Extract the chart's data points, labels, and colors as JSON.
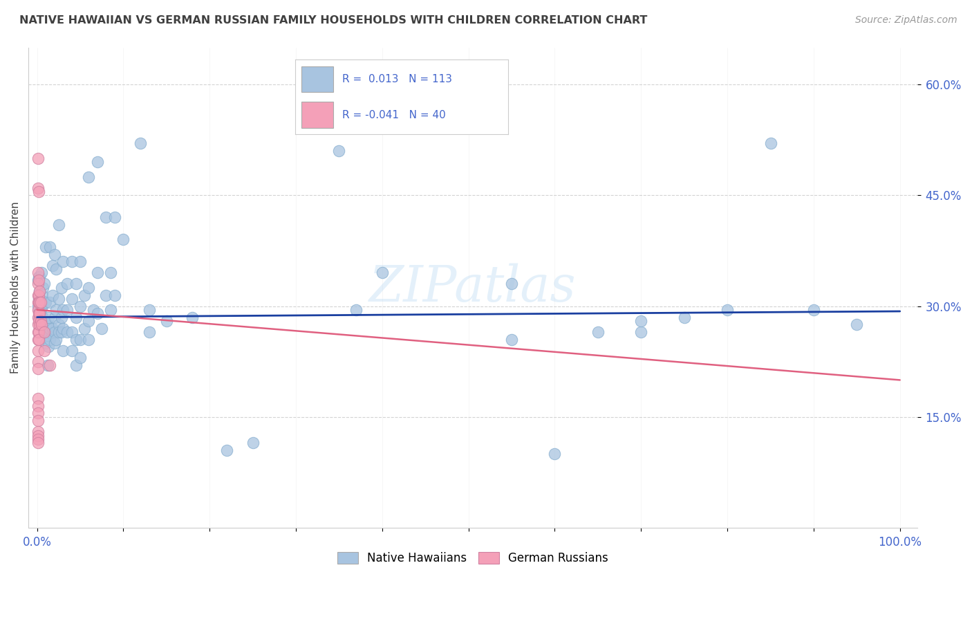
{
  "title": "NATIVE HAWAIIAN VS GERMAN RUSSIAN FAMILY HOUSEHOLDS WITH CHILDREN CORRELATION CHART",
  "source": "Source: ZipAtlas.com",
  "ylabel": "Family Households with Children",
  "R1": 0.013,
  "N1": 113,
  "R2": -0.041,
  "N2": 40,
  "color_blue": "#a8c4e0",
  "color_pink": "#f4a0b8",
  "trendline_blue": "#1a3fa0",
  "trendline_pink": "#e06080",
  "background": "#ffffff",
  "grid_color": "#c8c8c8",
  "title_color": "#404040",
  "axis_color": "#4466cc",
  "watermark": "ZIPatlas",
  "legend_label1": "Native Hawaiians",
  "legend_label2": "German Russians",
  "blue_intercept": 0.285,
  "blue_slope": 0.008,
  "pink_intercept": 0.295,
  "pink_slope": -0.095,
  "blue_points": [
    [
      0.001,
      0.335
    ],
    [
      0.001,
      0.3
    ],
    [
      0.002,
      0.34
    ],
    [
      0.002,
      0.31
    ],
    [
      0.002,
      0.285
    ],
    [
      0.002,
      0.295
    ],
    [
      0.003,
      0.34
    ],
    [
      0.003,
      0.31
    ],
    [
      0.003,
      0.32
    ],
    [
      0.004,
      0.3
    ],
    [
      0.004,
      0.295
    ],
    [
      0.005,
      0.345
    ],
    [
      0.005,
      0.3
    ],
    [
      0.005,
      0.285
    ],
    [
      0.006,
      0.315
    ],
    [
      0.006,
      0.3
    ],
    [
      0.006,
      0.275
    ],
    [
      0.007,
      0.325
    ],
    [
      0.007,
      0.285
    ],
    [
      0.007,
      0.27
    ],
    [
      0.008,
      0.33
    ],
    [
      0.008,
      0.27
    ],
    [
      0.008,
      0.265
    ],
    [
      0.009,
      0.305
    ],
    [
      0.009,
      0.28
    ],
    [
      0.01,
      0.38
    ],
    [
      0.01,
      0.305
    ],
    [
      0.01,
      0.275
    ],
    [
      0.01,
      0.25
    ],
    [
      0.012,
      0.275
    ],
    [
      0.012,
      0.26
    ],
    [
      0.012,
      0.22
    ],
    [
      0.013,
      0.285
    ],
    [
      0.013,
      0.265
    ],
    [
      0.013,
      0.245
    ],
    [
      0.015,
      0.38
    ],
    [
      0.015,
      0.305
    ],
    [
      0.015,
      0.27
    ],
    [
      0.015,
      0.255
    ],
    [
      0.018,
      0.355
    ],
    [
      0.018,
      0.315
    ],
    [
      0.018,
      0.27
    ],
    [
      0.02,
      0.37
    ],
    [
      0.02,
      0.285
    ],
    [
      0.02,
      0.265
    ],
    [
      0.02,
      0.25
    ],
    [
      0.022,
      0.35
    ],
    [
      0.022,
      0.295
    ],
    [
      0.022,
      0.255
    ],
    [
      0.025,
      0.41
    ],
    [
      0.025,
      0.31
    ],
    [
      0.025,
      0.275
    ],
    [
      0.025,
      0.265
    ],
    [
      0.028,
      0.325
    ],
    [
      0.028,
      0.285
    ],
    [
      0.028,
      0.265
    ],
    [
      0.03,
      0.36
    ],
    [
      0.03,
      0.295
    ],
    [
      0.03,
      0.27
    ],
    [
      0.03,
      0.24
    ],
    [
      0.035,
      0.33
    ],
    [
      0.035,
      0.295
    ],
    [
      0.035,
      0.265
    ],
    [
      0.04,
      0.36
    ],
    [
      0.04,
      0.31
    ],
    [
      0.04,
      0.265
    ],
    [
      0.04,
      0.24
    ],
    [
      0.045,
      0.33
    ],
    [
      0.045,
      0.285
    ],
    [
      0.045,
      0.255
    ],
    [
      0.045,
      0.22
    ],
    [
      0.05,
      0.36
    ],
    [
      0.05,
      0.3
    ],
    [
      0.05,
      0.255
    ],
    [
      0.05,
      0.23
    ],
    [
      0.055,
      0.315
    ],
    [
      0.055,
      0.27
    ],
    [
      0.06,
      0.475
    ],
    [
      0.06,
      0.325
    ],
    [
      0.06,
      0.28
    ],
    [
      0.06,
      0.255
    ],
    [
      0.065,
      0.295
    ],
    [
      0.07,
      0.495
    ],
    [
      0.07,
      0.345
    ],
    [
      0.07,
      0.29
    ],
    [
      0.075,
      0.27
    ],
    [
      0.08,
      0.42
    ],
    [
      0.08,
      0.315
    ],
    [
      0.085,
      0.345
    ],
    [
      0.085,
      0.295
    ],
    [
      0.09,
      0.42
    ],
    [
      0.09,
      0.315
    ],
    [
      0.1,
      0.39
    ],
    [
      0.12,
      0.52
    ],
    [
      0.13,
      0.295
    ],
    [
      0.13,
      0.265
    ],
    [
      0.15,
      0.28
    ],
    [
      0.18,
      0.285
    ],
    [
      0.22,
      0.105
    ],
    [
      0.25,
      0.115
    ],
    [
      0.35,
      0.51
    ],
    [
      0.37,
      0.295
    ],
    [
      0.4,
      0.345
    ],
    [
      0.55,
      0.33
    ],
    [
      0.55,
      0.255
    ],
    [
      0.6,
      0.1
    ],
    [
      0.65,
      0.265
    ],
    [
      0.7,
      0.265
    ],
    [
      0.7,
      0.28
    ],
    [
      0.75,
      0.285
    ],
    [
      0.8,
      0.295
    ],
    [
      0.85,
      0.52
    ],
    [
      0.9,
      0.295
    ],
    [
      0.95,
      0.275
    ]
  ],
  "pink_points": [
    [
      0.001,
      0.5
    ],
    [
      0.001,
      0.46
    ],
    [
      0.001,
      0.345
    ],
    [
      0.001,
      0.33
    ],
    [
      0.001,
      0.315
    ],
    [
      0.001,
      0.305
    ],
    [
      0.001,
      0.295
    ],
    [
      0.001,
      0.285
    ],
    [
      0.001,
      0.275
    ],
    [
      0.001,
      0.265
    ],
    [
      0.001,
      0.255
    ],
    [
      0.001,
      0.24
    ],
    [
      0.001,
      0.225
    ],
    [
      0.001,
      0.215
    ],
    [
      0.001,
      0.175
    ],
    [
      0.001,
      0.165
    ],
    [
      0.001,
      0.155
    ],
    [
      0.001,
      0.145
    ],
    [
      0.001,
      0.13
    ],
    [
      0.001,
      0.125
    ],
    [
      0.001,
      0.12
    ],
    [
      0.001,
      0.115
    ],
    [
      0.002,
      0.455
    ],
    [
      0.002,
      0.335
    ],
    [
      0.002,
      0.315
    ],
    [
      0.002,
      0.305
    ],
    [
      0.002,
      0.29
    ],
    [
      0.002,
      0.28
    ],
    [
      0.002,
      0.265
    ],
    [
      0.002,
      0.255
    ],
    [
      0.003,
      0.32
    ],
    [
      0.003,
      0.305
    ],
    [
      0.003,
      0.29
    ],
    [
      0.003,
      0.275
    ],
    [
      0.004,
      0.305
    ],
    [
      0.004,
      0.28
    ],
    [
      0.005,
      0.275
    ],
    [
      0.008,
      0.265
    ],
    [
      0.008,
      0.24
    ],
    [
      0.015,
      0.22
    ]
  ]
}
